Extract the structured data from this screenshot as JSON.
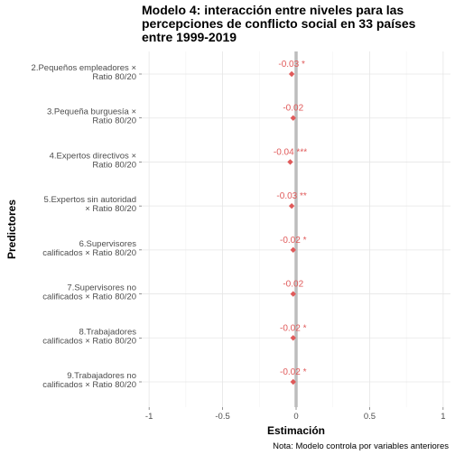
{
  "chart_data": {
    "type": "scatter",
    "title_lines": [
      "Modelo 4: interacción entre niveles para las",
      "percepciones de conflicto social en 33 países",
      "entre 1999-2019"
    ],
    "xlabel": "Estimación",
    "ylabel": "Predictores",
    "caption": "Nota: Modelo controla por variables anteriores",
    "xlim": [
      -1.05,
      1.05
    ],
    "x_ticks": [
      -1,
      -0.5,
      0,
      0.5,
      1
    ],
    "x_tick_labels": [
      "-1",
      "-0.5",
      "0",
      "0.5",
      "1"
    ],
    "reference_line_x": 0,
    "grid": true,
    "point_color": "#e05a5a",
    "reference_line_color": "#bdbdbd",
    "predictors": [
      {
        "label_lines": [
          "2.Pequeños empleadores ×",
          "Ratio 80/20"
        ],
        "estimate": -0.03,
        "label": "-0.03 *"
      },
      {
        "label_lines": [
          "3.Pequeña burguesía ×",
          "Ratio 80/20"
        ],
        "estimate": -0.02,
        "label": "-0.02"
      },
      {
        "label_lines": [
          "4.Expertos directivos ×",
          "Ratio 80/20"
        ],
        "estimate": -0.04,
        "label": "-0.04 ***"
      },
      {
        "label_lines": [
          "5.Expertos sin autoridad",
          "× Ratio 80/20"
        ],
        "estimate": -0.03,
        "label": "-0.03 **"
      },
      {
        "label_lines": [
          "6.Supervisores",
          "calificados × Ratio 80/20"
        ],
        "estimate": -0.02,
        "label": "-0.02 *"
      },
      {
        "label_lines": [
          "7.Supervisores no",
          "calificados × Ratio 80/20"
        ],
        "estimate": -0.02,
        "label": "-0.02"
      },
      {
        "label_lines": [
          "8.Trabajadores",
          "calificados × Ratio 80/20"
        ],
        "estimate": -0.02,
        "label": "-0.02 *"
      },
      {
        "label_lines": [
          "9.Trabajadores no",
          "calificados × Ratio 80/20"
        ],
        "estimate": -0.02,
        "label": "-0.02 *"
      }
    ]
  }
}
